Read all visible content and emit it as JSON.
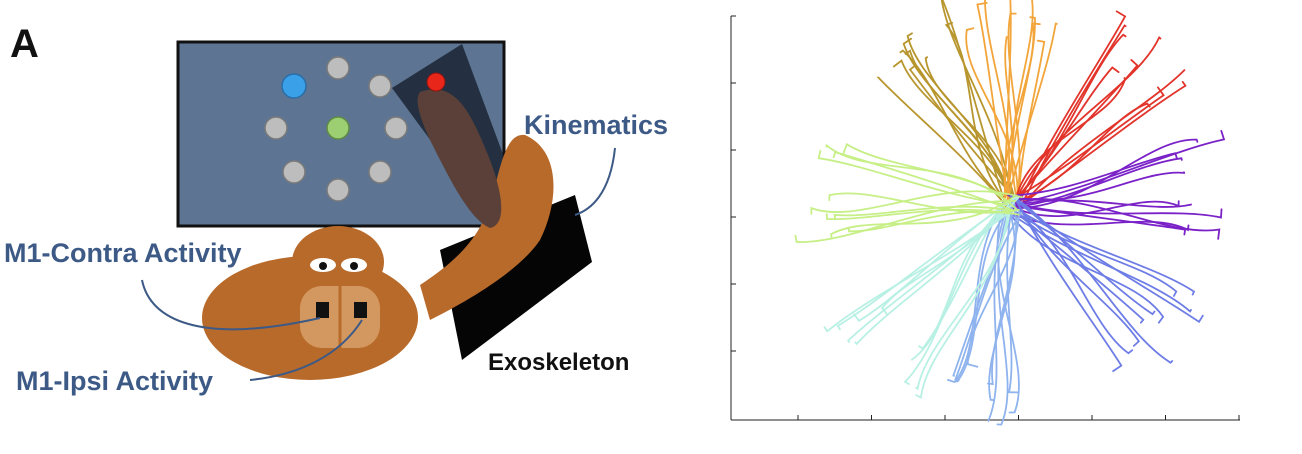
{
  "panel": {
    "letter": "A"
  },
  "labels": {
    "kinematics": "Kinematics",
    "m1_contra": "M1-Contra Activity",
    "m1_ipsi": "M1-Ipsi Activity",
    "exoskeleton": "Exoskeleton"
  },
  "colors": {
    "screen": "#5d7593",
    "target_gray": "#bdbdbd",
    "target_blue": "#3aa0e8",
    "target_red": "#e8261a",
    "center_target": "#9ccf72",
    "monkey_body": "#b86a2a",
    "label_blue": "#3d5a86"
  },
  "chart_data": {
    "type": "line",
    "description_series": "reach trajectories to 8 targets",
    "x_ticks": 7,
    "y_ticks": 6,
    "grid": false,
    "directions": [
      {
        "angle_deg": 122,
        "color": "#b8962e"
      },
      {
        "angle_deg": 92,
        "color": "#f2a53a"
      },
      {
        "angle_deg": 50,
        "color": "#e2342b"
      },
      {
        "angle_deg": 5,
        "color": "#7a22c8"
      },
      {
        "angle_deg": -40,
        "color": "#6e7de6"
      },
      {
        "angle_deg": -95,
        "color": "#8fb3ee"
      },
      {
        "angle_deg": -130,
        "color": "#b8f0e4"
      },
      {
        "angle_deg": 175,
        "color": "#c6ef86"
      }
    ]
  }
}
